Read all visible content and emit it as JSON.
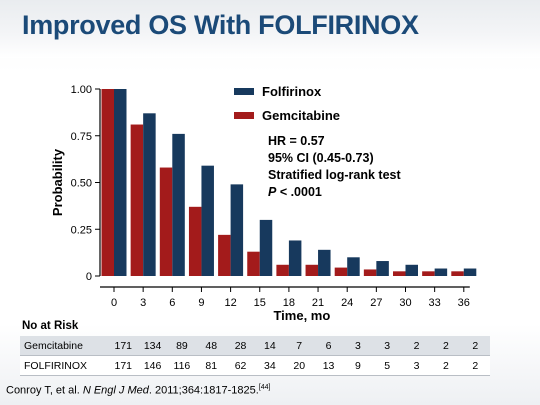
{
  "slide": {
    "title": "Improved OS With FOLFIRINOX"
  },
  "legend": [
    {
      "label": "Folfirinox",
      "color": "#17395d"
    },
    {
      "label": "Gemcitabine",
      "color": "#a31b1b"
    }
  ],
  "annotation": {
    "hr": "HR = 0.57",
    "ci": "95% CI (0.45-0.73)",
    "test": "Stratified log-rank test",
    "p_italic": "P",
    "p_rest": " < .0001"
  },
  "chart_data": {
    "type": "bar",
    "xlabel": "Time, mo",
    "ylabel": "Probability",
    "ylim": [
      0,
      1.0
    ],
    "yticks": [
      0,
      0.25,
      0.5,
      0.75,
      1.0
    ],
    "ytick_labels": [
      "0",
      "0.25",
      "0.50",
      "0.75",
      "1.00"
    ],
    "categories": [
      "0",
      "3",
      "6",
      "9",
      "12",
      "15",
      "18",
      "21",
      "24",
      "27",
      "30",
      "33",
      "36"
    ],
    "series": [
      {
        "name": "Gemcitabine",
        "color": "#a31b1b",
        "values": [
          1.0,
          0.81,
          0.58,
          0.37,
          0.22,
          0.13,
          0.06,
          0.06,
          0.045,
          0.035,
          0.025,
          0.025,
          0.025
        ]
      },
      {
        "name": "Folfirinox",
        "color": "#17395d",
        "values": [
          1.0,
          0.87,
          0.76,
          0.59,
          0.49,
          0.3,
          0.19,
          0.14,
          0.1,
          0.08,
          0.06,
          0.04,
          0.04
        ]
      }
    ],
    "grid": false,
    "legend_position": "top-right"
  },
  "risk_table": {
    "title": "No at Risk",
    "rows": [
      {
        "label": "Gemcitabine",
        "values": [
          "171",
          "134",
          "89",
          "48",
          "28",
          "14",
          "7",
          "6",
          "3",
          "3",
          "2",
          "2",
          "2"
        ]
      },
      {
        "label": "FOLFIRINOX",
        "values": [
          "171",
          "146",
          "116",
          "81",
          "62",
          "34",
          "20",
          "13",
          "9",
          "5",
          "3",
          "2",
          "2"
        ]
      }
    ]
  },
  "citation": {
    "authors": "Conroy T, et al. ",
    "journal": "N Engl J Med",
    "details": ". 2011;364:1817-1825.",
    "ref": "[44]"
  }
}
